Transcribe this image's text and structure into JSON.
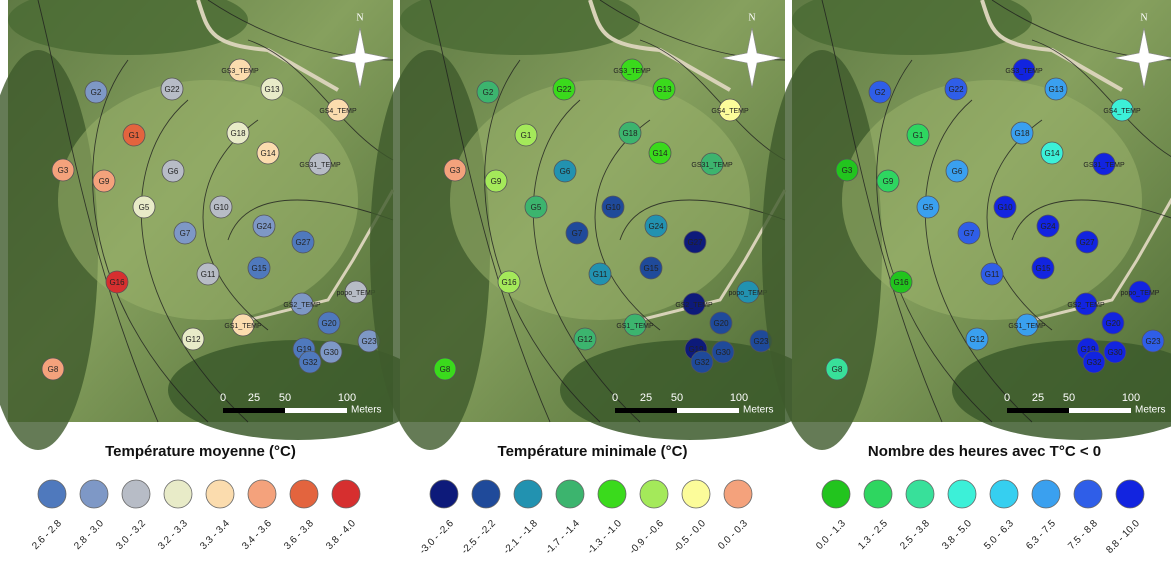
{
  "sites": [
    "G2",
    "G22",
    "GS3_TEMP",
    "G13",
    "GS4_TEMP",
    "G18",
    "G1",
    "G14",
    "GS31_TEMP",
    "G3",
    "G9",
    "G6",
    "G5",
    "G10",
    "G24",
    "G7",
    "G27",
    "G15",
    "G11",
    "G16",
    "popo_TEMP",
    "GS2_TEMP",
    "GS1_TEMP",
    "G20",
    "G12",
    "G23",
    "G19",
    "G30",
    "G32",
    "G8"
  ],
  "scale_bar": {
    "ticks": [
      "0",
      "25",
      "50",
      "100"
    ],
    "unit": "Meters"
  },
  "north": "N",
  "maps": [
    {
      "title": "Température moyenne (°C)",
      "legend": [
        {
          "label": "2.6 - 2.8",
          "color": "#4f79bd"
        },
        {
          "label": "2.8 - 3.0",
          "color": "#7e98c6"
        },
        {
          "label": "3.0 - 3.2",
          "color": "#b7bcc6"
        },
        {
          "label": "3.2 - 3.3",
          "color": "#e8ebc8"
        },
        {
          "label": "3.3 - 3.4",
          "color": "#fbdcae"
        },
        {
          "label": "3.4 - 3.6",
          "color": "#f4a27c"
        },
        {
          "label": "3.6 - 3.8",
          "color": "#e3643e"
        },
        {
          "label": "3.8 - 4.0",
          "color": "#d62f2f"
        }
      ],
      "colors": [
        "#7e98c6",
        "#b7bcc6",
        "#fbdcae",
        "#e8ebc8",
        "#fbdcae",
        "#e8ebc8",
        "#e3643e",
        "#fbdcae",
        "#b7bcc6",
        "#f4a27c",
        "#f4a27c",
        "#b7bcc6",
        "#e8ebc8",
        "#b7bcc6",
        "#7e98c6",
        "#7e98c6",
        "#4f79bd",
        "#4f79bd",
        "#b7bcc6",
        "#d62f2f",
        "#b7bcc6",
        "#7e98c6",
        "#fbdcae",
        "#4f79bd",
        "#e8ebc8",
        "#7e98c6",
        "#4f79bd",
        "#7e98c6",
        "#4f79bd",
        "#f4a27c"
      ]
    },
    {
      "title": "Température minimale (°C)",
      "legend": [
        {
          "label": "-3.0 - -2.6",
          "color": "#0d1a7a"
        },
        {
          "label": "-2.5 - -2.2",
          "color": "#1f4a9a"
        },
        {
          "label": "-2.1 - -1.8",
          "color": "#2292b0"
        },
        {
          "label": "-1.7 - -1.4",
          "color": "#3cb46e"
        },
        {
          "label": "-1.3 - -1.0",
          "color": "#3ada1c"
        },
        {
          "label": "-0.9 - -0.6",
          "color": "#a4e95a"
        },
        {
          "label": "-0.5 - 0.0",
          "color": "#fcfc9a"
        },
        {
          "label": "0.0 - 0.3",
          "color": "#f4a27c"
        }
      ],
      "colors": [
        "#3cb46e",
        "#3ada1c",
        "#3ada1c",
        "#3ada1c",
        "#fcfc9a",
        "#3cb46e",
        "#a4e95a",
        "#3ada1c",
        "#3cb46e",
        "#f4a27c",
        "#a4e95a",
        "#2292b0",
        "#3cb46e",
        "#1f4a9a",
        "#2292b0",
        "#1f4a9a",
        "#0d1a7a",
        "#1f4a9a",
        "#2292b0",
        "#a4e95a",
        "#2292b0",
        "#0d1a7a",
        "#3cb46e",
        "#1f4a9a",
        "#3cb46e",
        "#1f4a9a",
        "#0d1a7a",
        "#1f4a9a",
        "#1f4a9a",
        "#3ada1c"
      ]
    },
    {
      "title": "Nombre des heures avec T°C < 0",
      "legend": [
        {
          "label": "0.0 - 1.3",
          "color": "#22c41e"
        },
        {
          "label": "1.3 - 2.5",
          "color": "#2ed660"
        },
        {
          "label": "2.5 - 3.8",
          "color": "#38e09a"
        },
        {
          "label": "3.8 - 5.0",
          "color": "#3cf0d8"
        },
        {
          "label": "5.0 - 6.3",
          "color": "#36cff0"
        },
        {
          "label": "6.3 - 7.5",
          "color": "#3aa0ef"
        },
        {
          "label": "7.5 - 8.8",
          "color": "#2f5ee8"
        },
        {
          "label": "8.8 - 10.0",
          "color": "#1224e0"
        }
      ],
      "colors": [
        "#2f5ee8",
        "#2f5ee8",
        "#1224e0",
        "#3aa0ef",
        "#3cf0d8",
        "#3aa0ef",
        "#2ed660",
        "#3cf0d8",
        "#1224e0",
        "#22c41e",
        "#2ed660",
        "#3aa0ef",
        "#3aa0ef",
        "#1224e0",
        "#1224e0",
        "#2f5ee8",
        "#1224e0",
        "#1224e0",
        "#2f5ee8",
        "#22c41e",
        "#1224e0",
        "#1224e0",
        "#3aa0ef",
        "#1224e0",
        "#3aa0ef",
        "#2f5ee8",
        "#1224e0",
        "#1224e0",
        "#1224e0",
        "#38e09a"
      ]
    }
  ]
}
